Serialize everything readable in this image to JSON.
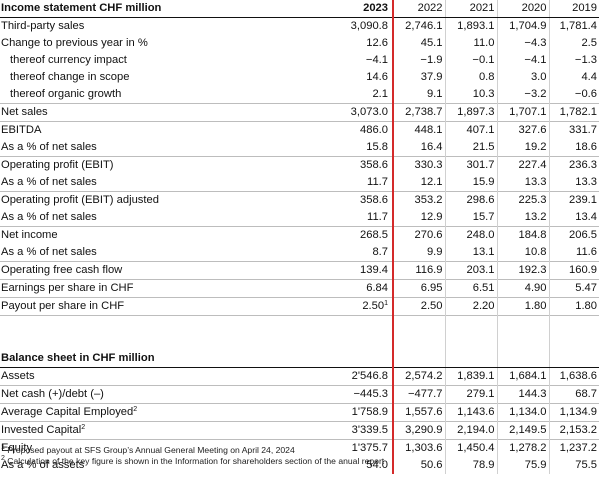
{
  "income": {
    "title": "Income statement CHF million",
    "years": [
      "2023",
      "2022",
      "2021",
      "2020",
      "2019"
    ],
    "rows": [
      {
        "label": "Third-party sales",
        "values": [
          "3,090.8",
          "2,746.1",
          "1,893.1",
          "1,704.9",
          "1,781.4"
        ],
        "indent": false,
        "sep": false
      },
      {
        "label": "Change to previous year in %",
        "values": [
          "12.6",
          "45.1",
          "11.0",
          "−4.3",
          "2.5"
        ],
        "indent": false,
        "sep": false
      },
      {
        "label": "thereof currency impact",
        "values": [
          "−4.1",
          "−1.9",
          "−0.1",
          "−4.1",
          "−1.3"
        ],
        "indent": true,
        "sep": false
      },
      {
        "label": "thereof change in scope",
        "values": [
          "14.6",
          "37.9",
          "0.8",
          "3.0",
          "4.4"
        ],
        "indent": true,
        "sep": false
      },
      {
        "label": "thereof organic growth",
        "values": [
          "2.1",
          "9.1",
          "10.3",
          "−3.2",
          "−0.6"
        ],
        "indent": true,
        "sep": false
      },
      {
        "label": "Net sales",
        "values": [
          "3,073.0",
          "2,738.7",
          "1,897.3",
          "1,707.1",
          "1,782.1"
        ],
        "indent": false,
        "sep": true
      },
      {
        "label": "EBITDA",
        "values": [
          "486.0",
          "448.1",
          "407.1",
          "327.6",
          "331.7"
        ],
        "indent": false,
        "sep": true
      },
      {
        "label": "As a % of net sales",
        "values": [
          "15.8",
          "16.4",
          "21.5",
          "19.2",
          "18.6"
        ],
        "indent": false,
        "sep": false
      },
      {
        "label": "Operating profit (EBIT)",
        "values": [
          "358.6",
          "330.3",
          "301.7",
          "227.4",
          "236.3"
        ],
        "indent": false,
        "sep": true
      },
      {
        "label": "As a % of net sales",
        "values": [
          "11.7",
          "12.1",
          "15.9",
          "13.3",
          "13.3"
        ],
        "indent": false,
        "sep": false
      },
      {
        "label": "Operating profit (EBIT) adjusted",
        "values": [
          "358.6",
          "353.2",
          "298.6",
          "225.3",
          "239.1"
        ],
        "indent": false,
        "sep": true
      },
      {
        "label": "As a % of net sales",
        "values": [
          "11.7",
          "12.9",
          "15.7",
          "13.2",
          "13.4"
        ],
        "indent": false,
        "sep": false
      },
      {
        "label": "Net income",
        "values": [
          "268.5",
          "270.6",
          "248.0",
          "184.8",
          "206.5"
        ],
        "indent": false,
        "sep": true
      },
      {
        "label": "As a % of net sales",
        "values": [
          "8.7",
          "9.9",
          "13.1",
          "10.8",
          "11.6"
        ],
        "indent": false,
        "sep": false
      },
      {
        "label": "Operating free cash flow",
        "values": [
          "139.4",
          "116.9",
          "203.1",
          "192.3",
          "160.9"
        ],
        "indent": false,
        "sep": true
      },
      {
        "label": "Earnings per share in CHF",
        "values": [
          "6.84",
          "6.95",
          "6.51",
          "4.90",
          "5.47"
        ],
        "indent": false,
        "sep": true
      },
      {
        "label": "Payout per share in CHF",
        "values": [
          "2.50",
          "2.50",
          "2.20",
          "1.80",
          "1.80"
        ],
        "sup0": "1",
        "indent": false,
        "sep": true
      }
    ]
  },
  "balance": {
    "title": "Balance sheet in CHF million",
    "rows": [
      {
        "label": "Assets",
        "values": [
          "2'546.8",
          "2,574.2",
          "1,839.1",
          "1,684.1",
          "1,638.6"
        ],
        "sep": false
      },
      {
        "label": "Net cash (+)/debt (–)",
        "values": [
          "−445.3",
          "−477.7",
          "279.1",
          "144.3",
          "68.7"
        ],
        "sep": true
      },
      {
        "label": "Average Capital Employed",
        "sup": "2",
        "values": [
          "1'758.9",
          "1,557.6",
          "1,143.6",
          "1,134.0",
          "1,134.9"
        ],
        "sep": true
      },
      {
        "label": "Invested Capital",
        "sup": "2",
        "values": [
          "3'339.5",
          "3,290.9",
          "2,194.0",
          "2,149.5",
          "2,153.2"
        ],
        "sep": true
      },
      {
        "label": "Equity",
        "values": [
          "1'375.7",
          "1,303.6",
          "1,450.4",
          "1,278.2",
          "1,237.2"
        ],
        "sep": true
      },
      {
        "label": "As a % of assets",
        "values": [
          "54.0",
          "50.6",
          "78.9",
          "75.9",
          "75.5"
        ],
        "sep": false
      }
    ]
  },
  "footnotes": [
    {
      "mark": "1",
      "text": " Proposed payout at SFS Group’s Annual General Meeting on April 24, 2024"
    },
    {
      "mark": "2",
      "text": " Calculation of the key figure is shown in the Information for shareholders section of the anual report"
    }
  ]
}
